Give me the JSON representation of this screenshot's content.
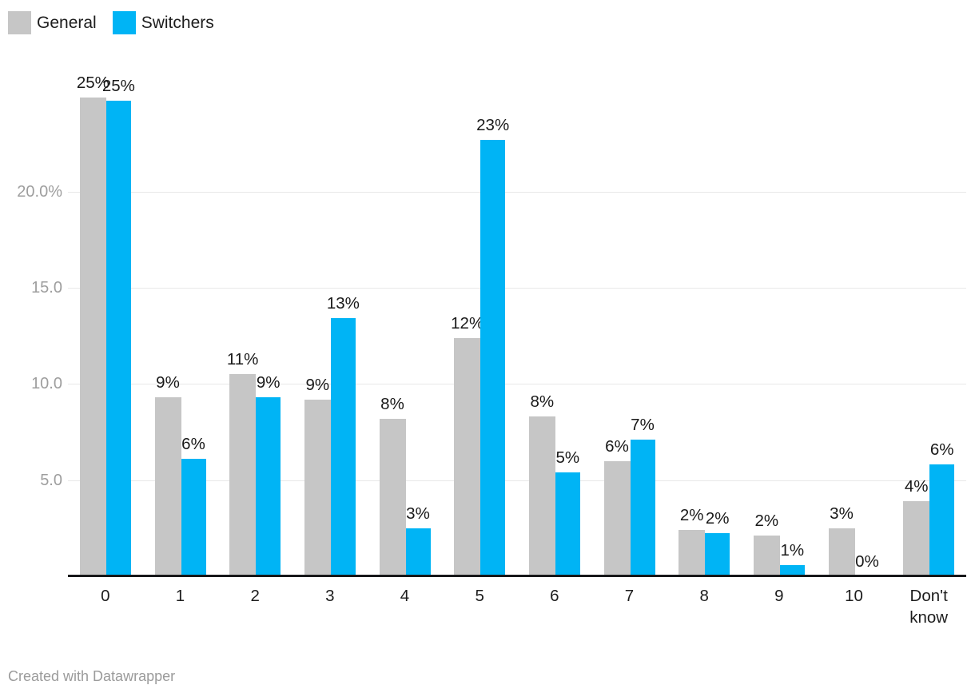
{
  "legend": {
    "items": [
      {
        "label": "General",
        "color": "#c6c6c6"
      },
      {
        "label": "Switchers",
        "color": "#00b4f5"
      }
    ]
  },
  "footer": {
    "attribution": "Created with Datawrapper"
  },
  "chart_data": {
    "type": "bar",
    "subtype": "grouped-column",
    "title": "",
    "xlabel": "",
    "ylabel": "",
    "categories": [
      "0",
      "1",
      "2",
      "3",
      "4",
      "5",
      "6",
      "7",
      "8",
      "9",
      "10",
      "Don't know"
    ],
    "series": [
      {
        "name": "General",
        "color": "#c6c6c6",
        "values": [
          25,
          9,
          11,
          9,
          8,
          12,
          8,
          6,
          2,
          2,
          3,
          4
        ],
        "labels": [
          "25%",
          "9%",
          "11%",
          "9%",
          "8%",
          "12%",
          "8%",
          "6%",
          "2%",
          "2%",
          "3%",
          "4%"
        ],
        "values_precise": [
          24.9,
          9.3,
          10.5,
          9.2,
          8.2,
          12.4,
          8.3,
          6.0,
          2.4,
          2.1,
          2.5,
          3.9
        ]
      },
      {
        "name": "Switchers",
        "color": "#00b4f5",
        "values": [
          25,
          6,
          9,
          13,
          3,
          23,
          5,
          7,
          2,
          1,
          0,
          6
        ],
        "labels": [
          "25%",
          "6%",
          "9%",
          "13%",
          "3%",
          "23%",
          "5%",
          "7%",
          "2%",
          "1%",
          "0%",
          "6%"
        ],
        "values_precise": [
          24.7,
          6.1,
          9.3,
          13.4,
          2.5,
          22.7,
          5.4,
          7.1,
          2.25,
          0.6,
          0,
          5.8
        ]
      }
    ],
    "ylim": [
      0,
      26
    ],
    "yticks": [
      5,
      10,
      15,
      20
    ],
    "ytick_labels": [
      "5.0",
      "10.0",
      "15.0",
      "20.0%"
    ],
    "grid": true,
    "legend_position": "top-left",
    "attribution": "Created with Datawrapper"
  }
}
